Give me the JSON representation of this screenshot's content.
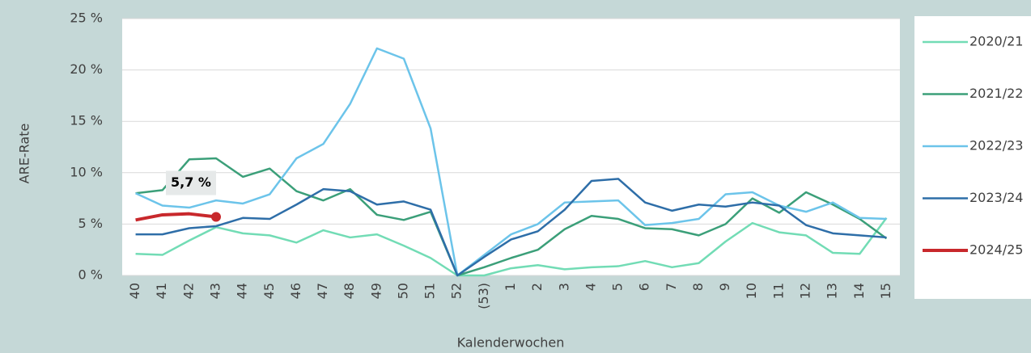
{
  "chart_data": {
    "type": "line",
    "x_label": "Kalenderwochen",
    "y_label": "ARE-Rate",
    "categories": [
      "40",
      "41",
      "42",
      "43",
      "44",
      "45",
      "46",
      "47",
      "48",
      "49",
      "50",
      "51",
      "52",
      "(53)",
      "1",
      "2",
      "3",
      "4",
      "5",
      "6",
      "7",
      "8",
      "9",
      "10",
      "11",
      "12",
      "13",
      "14",
      "15"
    ],
    "ylim": [
      0,
      25
    ],
    "yticks": [
      {
        "value": 0,
        "label": "0 %"
      },
      {
        "value": 5,
        "label": "5 %"
      },
      {
        "value": 10,
        "label": "10 %"
      },
      {
        "value": 15,
        "label": "15 %"
      },
      {
        "value": 20,
        "label": "20 %"
      },
      {
        "value": 25,
        "label": "25 %"
      }
    ],
    "grid": true,
    "legend": "right",
    "series": [
      {
        "name": "2020/21",
        "color": "#72dcb5",
        "values": [
          2.1,
          2.0,
          3.4,
          4.7,
          4.1,
          3.9,
          3.2,
          4.4,
          3.7,
          4.0,
          2.9,
          1.7,
          0,
          0,
          0.7,
          1.0,
          0.6,
          0.8,
          0.9,
          1.4,
          0.8,
          1.2,
          3.3,
          5.1,
          4.2,
          3.9,
          2.2,
          2.1,
          5.6
        ]
      },
      {
        "name": "2021/22",
        "color": "#3b9f79",
        "values": [
          8.0,
          8.3,
          11.3,
          11.4,
          9.6,
          10.4,
          8.2,
          7.3,
          8.4,
          5.9,
          5.4,
          6.2,
          0,
          0.8,
          1.7,
          2.5,
          4.5,
          5.8,
          5.5,
          4.6,
          4.5,
          3.9,
          5.0,
          7.5,
          6.1,
          8.1,
          6.9,
          5.5,
          3.6
        ]
      },
      {
        "name": "2022/23",
        "color": "#6cc4ea",
        "values": [
          8.0,
          6.8,
          6.6,
          7.3,
          7.0,
          7.9,
          11.4,
          12.8,
          16.7,
          22.1,
          21.1,
          14.3,
          0,
          2.0,
          4.0,
          5.0,
          7.1,
          7.2,
          7.3,
          4.9,
          5.1,
          5.5,
          7.9,
          8.1,
          6.8,
          6.2,
          7.1,
          5.6,
          5.5
        ]
      },
      {
        "name": "2023/24",
        "color": "#2e6ea8",
        "values": [
          4.0,
          4.0,
          4.6,
          4.8,
          5.6,
          5.5,
          6.9,
          8.4,
          8.2,
          6.9,
          7.2,
          6.4,
          0,
          1.8,
          3.5,
          4.3,
          6.4,
          9.2,
          9.4,
          7.1,
          6.3,
          6.9,
          6.7,
          7.1,
          6.8,
          4.9,
          4.1,
          3.9,
          3.7
        ]
      },
      {
        "name": "2024/25",
        "color": "#c8282c",
        "values": [
          5.4,
          5.9,
          6.0,
          5.7,
          null,
          null,
          null,
          null,
          null,
          null,
          null,
          null,
          null,
          null,
          null,
          null,
          null,
          null,
          null,
          null,
          null,
          null,
          null,
          null,
          null,
          null,
          null,
          null,
          null
        ],
        "value_labels": [
          null,
          null,
          null,
          "5,7 %",
          null,
          null,
          null,
          null,
          null,
          null,
          null,
          null,
          null,
          null,
          null,
          null,
          null,
          null,
          null,
          null,
          null,
          null,
          null,
          null,
          null,
          null,
          null,
          null,
          null
        ]
      }
    ]
  }
}
